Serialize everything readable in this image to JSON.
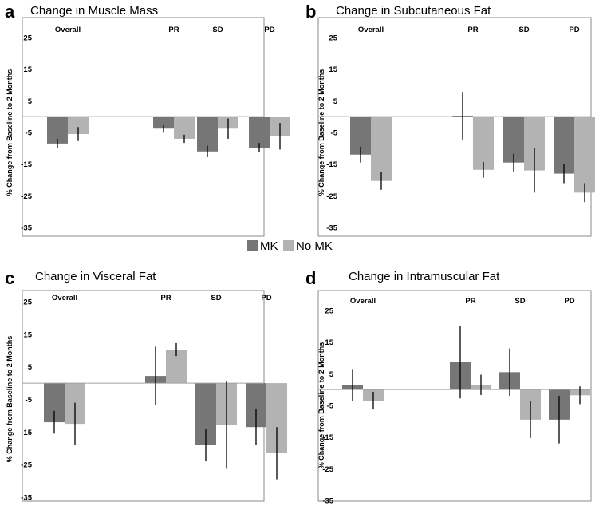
{
  "legend": {
    "items": [
      {
        "label": "MK",
        "color": "#767676"
      },
      {
        "label": "No MK",
        "color": "#b3b3b3"
      }
    ]
  },
  "chart_data": [
    {
      "type": "bar",
      "panel": "a",
      "title": "Change in Muscle Mass",
      "ylabel": "% Change from Baseline to 2 Months",
      "ylim": [
        -35,
        25
      ],
      "yticks": [
        25,
        15,
        5,
        -5,
        -15,
        -25,
        -35
      ],
      "categories": [
        "Overall",
        "PR",
        "SD",
        "PD"
      ],
      "series": [
        {
          "name": "MK",
          "values": [
            -8.5,
            -3.8,
            -11.0,
            -9.8
          ],
          "errors": [
            1.5,
            1.3,
            1.8,
            1.5
          ]
        },
        {
          "name": "No MK",
          "values": [
            -5.5,
            -7.0,
            -3.8,
            -6.2
          ],
          "errors": [
            2.2,
            1.3,
            3.2,
            4.2
          ]
        }
      ]
    },
    {
      "type": "bar",
      "panel": "b",
      "title": "Change in Subcutaneous Fat",
      "ylabel": "% Change from Baseline to 2 Months",
      "ylim": [
        -35,
        25
      ],
      "yticks": [
        25,
        15,
        5,
        -5,
        -15,
        -25,
        -35
      ],
      "categories": [
        "Overall",
        "PR",
        "SD",
        "PD"
      ],
      "series": [
        {
          "name": "MK",
          "values": [
            -12.0,
            0.3,
            -14.5,
            -18.0
          ],
          "errors": [
            2.5,
            7.5,
            2.8,
            3.0
          ]
        },
        {
          "name": "No MK",
          "values": [
            -20.3,
            -16.8,
            -17.0,
            -24.0
          ],
          "errors": [
            2.8,
            2.5,
            7.0,
            3.0
          ]
        }
      ]
    },
    {
      "type": "bar",
      "panel": "c",
      "title": "Change in Visceral Fat",
      "ylabel": "% Change from Baseline to 2 Months",
      "ylim": [
        -35,
        25
      ],
      "yticks": [
        25,
        15,
        5,
        -5,
        -15,
        -25,
        -35
      ],
      "categories": [
        "Overall",
        "PR",
        "SD",
        "PD"
      ],
      "series": [
        {
          "name": "MK",
          "values": [
            -12.0,
            2.2,
            -19.0,
            -13.5
          ],
          "errors": [
            3.5,
            9.0,
            5.0,
            5.5
          ]
        },
        {
          "name": "No MK",
          "values": [
            -12.5,
            10.3,
            -12.8,
            -21.5
          ],
          "errors": [
            6.5,
            2.0,
            13.5,
            8.0
          ]
        }
      ]
    },
    {
      "type": "bar",
      "panel": "d",
      "title": "Change in Intramuscular Fat",
      "ylabel": "% Change from Baseline to 2 Months",
      "ylim": [
        -35,
        25
      ],
      "yticks": [
        25,
        15,
        5,
        -5,
        -15,
        -25,
        -35
      ],
      "categories": [
        "Overall",
        "PR",
        "SD",
        "PD"
      ],
      "series": [
        {
          "name": "MK",
          "values": [
            1.5,
            8.7,
            5.5,
            -9.5
          ],
          "errors": [
            5.0,
            11.5,
            7.5,
            7.5
          ]
        },
        {
          "name": "No MK",
          "values": [
            -3.5,
            1.5,
            -9.5,
            -1.8
          ],
          "errors": [
            2.8,
            3.2,
            5.8,
            2.8
          ]
        }
      ]
    }
  ]
}
